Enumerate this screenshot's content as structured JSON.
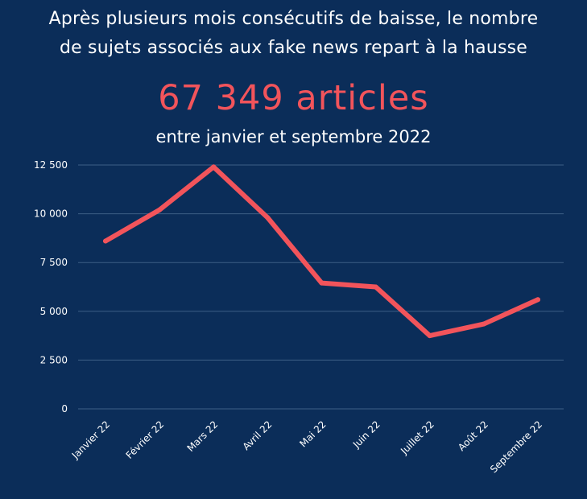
{
  "header": {
    "title": "Après plusieurs mois consécutifs de baisse, le nombre\nde sujets associés aux fake news repart à la hausse",
    "headline": "67 349 articles",
    "subtitle": "entre janvier et septembre 2022"
  },
  "colors": {
    "background": "#0b2d59",
    "line": "#f2545b",
    "headline": "#f2545b",
    "gridline": "#3d5f86",
    "text": "#ffffff"
  },
  "chart_data": {
    "type": "line",
    "categories": [
      "Janvier 22",
      "Février 22",
      "Mars 22",
      "Avril 22",
      "Mai 22",
      "Juin 22",
      "Juillet 22",
      "Août 22",
      "Septembre 22"
    ],
    "series": [
      {
        "values": [
          8600,
          10200,
          12400,
          9800,
          6450,
          6250,
          3750,
          4350,
          5600
        ]
      }
    ],
    "yticks": [
      0,
      2500,
      5000,
      7500,
      10000,
      12500
    ],
    "ytick_labels": [
      "0",
      "2 500",
      "5 000",
      "7 500",
      "10 000",
      "12 500"
    ],
    "ylim": [
      0,
      12500
    ],
    "grid": true,
    "legend": "none"
  }
}
